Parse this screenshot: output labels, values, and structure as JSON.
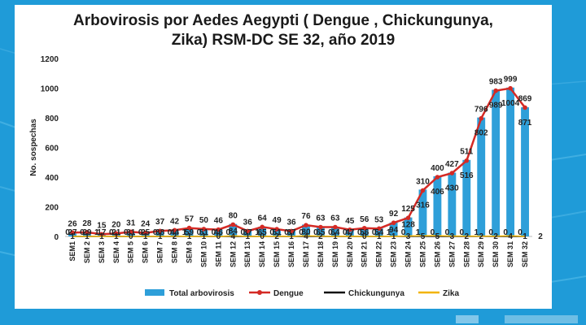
{
  "page": {
    "background_color": "#1f9bd8",
    "panel_color": "#ffffff"
  },
  "chart_data": {
    "type": "bar",
    "title_line1": "Arbovirosis por Aedes Aegypti ( Dengue , Chickungunya,",
    "title_line2": "Zika) RSM-DC SE 32, año 2019",
    "ylabel": "No. sospechas",
    "ylim": [
      0,
      1200
    ],
    "yticks": [
      0,
      200,
      400,
      600,
      800,
      1000,
      1200
    ],
    "categories": [
      "SEM1",
      "SEM 2",
      "SEM 3",
      "SEM 4",
      "SEM 5",
      "SEM 6",
      "SEM 7",
      "SEM 8",
      "SEM 9",
      "SEM 10",
      "SEM 11",
      "SEM 12",
      "SEM 13",
      "SEM 14",
      "SEM 15",
      "SEM 16",
      "SEM 17",
      "SEM 18",
      "SEM 19",
      "SEM 20",
      "SEM 21",
      "SEM 22",
      "SEM 23",
      "SEM 24",
      "SEM 25",
      "SEM 26",
      "SEM 27",
      "SEM 28",
      "SEM 29",
      "SEM 30",
      "SEM 31",
      "SEM 32"
    ],
    "series": [
      {
        "name": "Total arbovirosis",
        "kind": "bar",
        "color": "#2e9fd9",
        "values": [
          27,
          29,
          17,
          21,
          31,
          25,
          38,
          44,
          59,
          51,
          46,
          84,
          37,
          65,
          51,
          37,
          80,
          65,
          64,
          47,
          56,
          54,
          94,
          128,
          316,
          406,
          430,
          516,
          802,
          989,
          1004,
          871
        ]
      },
      {
        "name": "Dengue",
        "kind": "line",
        "color": "#d42a25",
        "values": [
          26,
          28,
          15,
          20,
          31,
          24,
          37,
          42,
          57,
          50,
          46,
          80,
          36,
          64,
          49,
          36,
          76,
          63,
          63,
          45,
          56,
          53,
          92,
          125,
          310,
          400,
          427,
          511,
          796,
          983,
          999,
          869
        ]
      },
      {
        "name": "Chickungunya",
        "kind": "line",
        "color": "#111111",
        "values": [
          0,
          0,
          1,
          0,
          0,
          0,
          0,
          0,
          1,
          0,
          0,
          0,
          0,
          1,
          0,
          0,
          0,
          0,
          0,
          0,
          0,
          0,
          1,
          0,
          1,
          0,
          0,
          0,
          1,
          0,
          0,
          0
        ]
      },
      {
        "name": "Zika",
        "kind": "line",
        "color": "#f2b400",
        "values": [
          1,
          1,
          1,
          1,
          0,
          1,
          1,
          2,
          1,
          1,
          0,
          4,
          1,
          0,
          2,
          1,
          4,
          2,
          1,
          2,
          0,
          1,
          1,
          3,
          5,
          5,
          3,
          2,
          2,
          2,
          4,
          1
        ],
        "extra_label": "2"
      }
    ],
    "legend_position": "bottom"
  }
}
